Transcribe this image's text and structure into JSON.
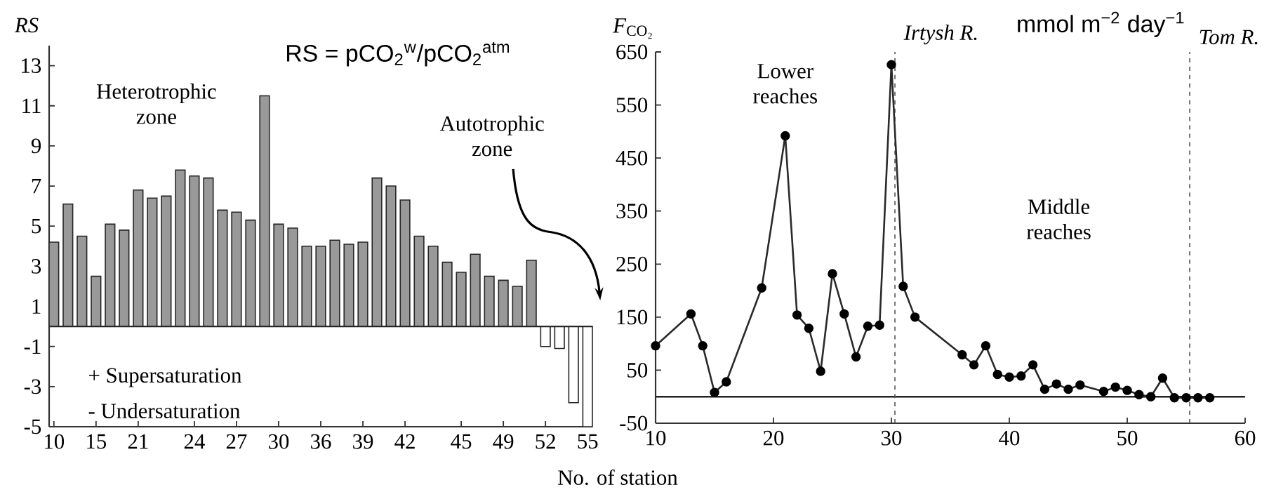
{
  "chart_data": [
    {
      "type": "bar",
      "title": "RS = pCO$_{2}$$^{w}$/pCO$_{2}$$^{atm}$",
      "ylabel": "*RS*",
      "xlabel": "No. of station",
      "categories": [
        "10",
        null,
        null,
        "15",
        null,
        null,
        "21",
        null,
        null,
        null,
        "24",
        null,
        null,
        "27",
        null,
        null,
        "30",
        null,
        null,
        "36",
        null,
        null,
        "39",
        null,
        null,
        "42",
        null,
        null,
        null,
        "45",
        null,
        null,
        "49",
        null,
        null,
        "52",
        null,
        null,
        "55"
      ],
      "values": [
        4.2,
        6.1,
        4.5,
        2.5,
        5.1,
        4.8,
        6.8,
        6.4,
        6.5,
        7.8,
        7.5,
        7.4,
        5.8,
        5.7,
        5.3,
        11.5,
        5.1,
        4.9,
        4.0,
        4.0,
        4.3,
        4.1,
        4.2,
        7.4,
        7.0,
        6.3,
        4.5,
        4.0,
        3.2,
        2.7,
        3.6,
        2.5,
        2.3,
        2.0,
        3.3,
        -1.0,
        -1.1,
        -3.8,
        -5.0
      ],
      "colors": [
        "#999999",
        "#999999",
        "#999999",
        "#999999",
        "#999999",
        "#999999",
        "#999999",
        "#999999",
        "#999999",
        "#999999",
        "#999999",
        "#999999",
        "#999999",
        "#999999",
        "#999999",
        "#999999",
        "#999999",
        "#999999",
        "#999999",
        "#999999",
        "#999999",
        "#999999",
        "#999999",
        "#999999",
        "#999999",
        "#999999",
        "#999999",
        "#999999",
        "#999999",
        "#999999",
        "#999999",
        "#999999",
        "#999999",
        "#999999",
        "#999999",
        "#ffffff",
        "#ffffff",
        "#ffffff",
        "#ffffff"
      ],
      "ylim": [
        -5,
        14
      ],
      "yticks": [
        -5,
        -3,
        -1,
        1,
        3,
        5,
        7,
        9,
        11,
        13
      ],
      "annotations": [
        "Heterotrophic zone",
        "Autotrophic zone",
        "+ Supersaturation",
        "- Undersaturation"
      ]
    },
    {
      "type": "line",
      "title": "mmol m$^{−2}$ day$^{−1}$",
      "ylabel": "*F*$_{CO₂}$",
      "x": [
        10,
        13,
        14,
        15,
        16,
        19,
        21,
        22,
        23,
        24,
        25,
        26,
        27,
        28,
        29,
        30,
        31,
        32,
        36,
        37,
        38,
        39,
        40,
        41,
        42,
        43,
        44,
        45,
        46,
        48,
        49,
        50,
        51,
        52,
        53,
        54,
        55,
        56,
        57
      ],
      "values": [
        96,
        156,
        96,
        8,
        28,
        205,
        492,
        154,
        129,
        48,
        232,
        156,
        75,
        133,
        135,
        626,
        208,
        150,
        79,
        60,
        96,
        42,
        37,
        39,
        60,
        14,
        24,
        14,
        22,
        10,
        18,
        12,
        4,
        0,
        35,
        -2,
        -2,
        -2,
        -2
      ],
      "color": "#2a2a2a",
      "marker": "circle",
      "line_style": "solid",
      "xlim": [
        10,
        60
      ],
      "xticks": [
        10,
        20,
        30,
        40,
        50,
        60
      ],
      "ylim": [
        -50,
        650
      ],
      "yticks": [
        -50,
        50,
        150,
        250,
        350,
        450,
        550,
        650
      ],
      "ref_lines": [
        {
          "axis": "y",
          "value": 0,
          "line_style": "solid",
          "color": "#222222"
        },
        {
          "axis": "x",
          "value": 30.3,
          "label": "Irtysh R.",
          "line_style": "dashed",
          "color": "#555555"
        },
        {
          "axis": "x",
          "value": 55.3,
          "label": "Tom R.",
          "line_style": "dashed",
          "color": "#555555"
        }
      ],
      "annotations": [
        "Lower reaches",
        "Middle reaches"
      ]
    }
  ]
}
